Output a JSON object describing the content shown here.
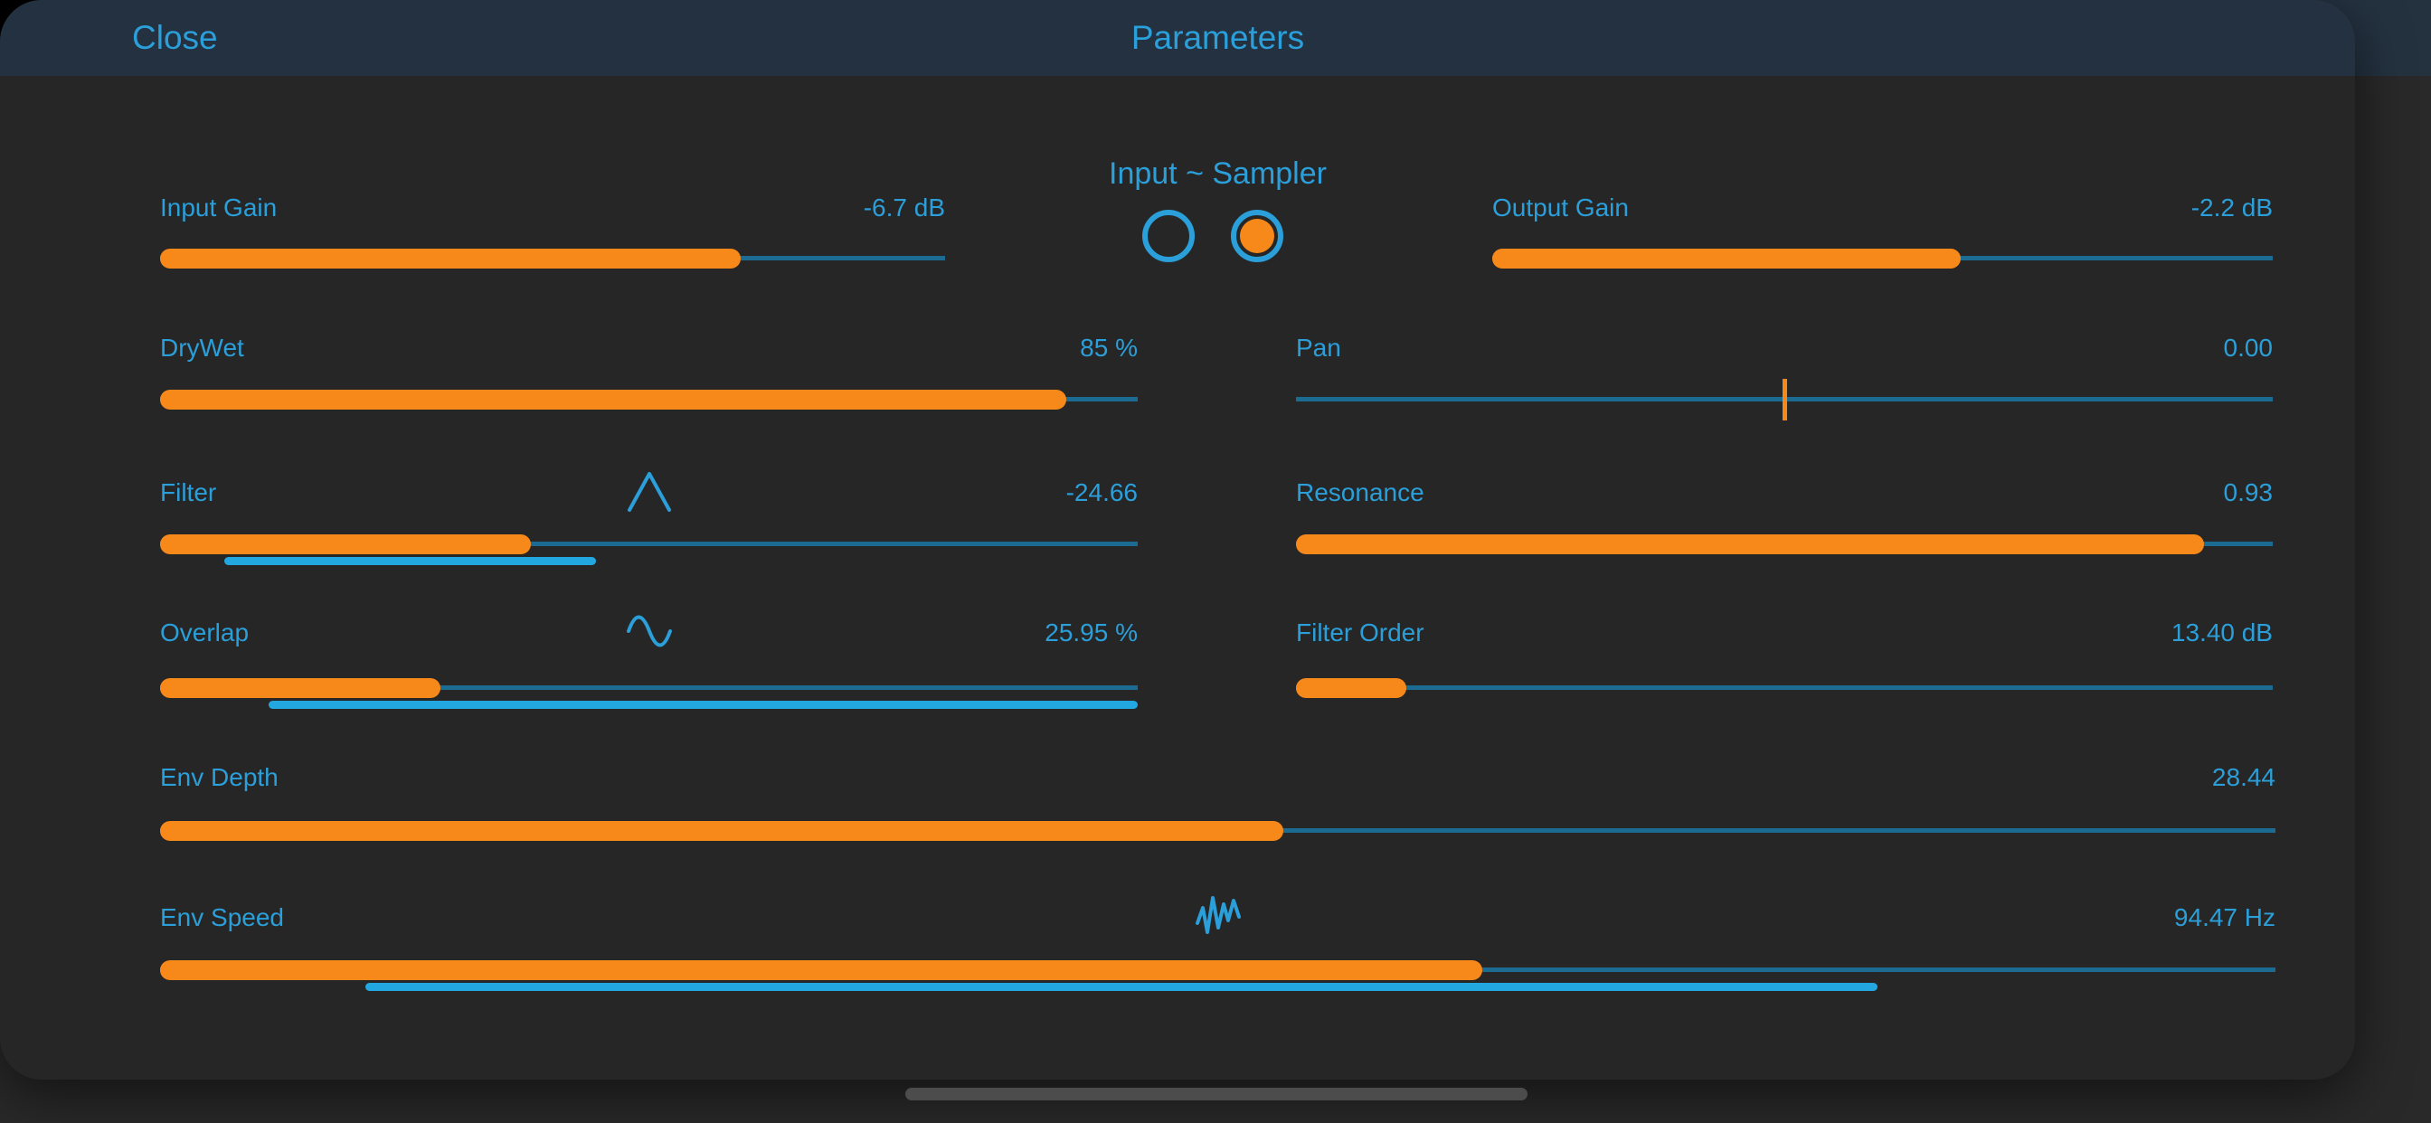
{
  "window": {
    "close_label": "Close",
    "title": "Parameters"
  },
  "header": {
    "label": "Input ~ Sampler",
    "dots": [
      {
        "name": "page-1",
        "selected": false
      },
      {
        "name": "page-2",
        "selected": true
      }
    ]
  },
  "colors": {
    "accent_blue": "#2b9fd9",
    "track_blue": "#1b6b93",
    "modulation_blue": "#22a7e1",
    "orange": "#f7891b",
    "topbar": "#233140",
    "panel_bg": "#262626",
    "backdrop_bg": "#292929",
    "home_indicator": "#4c4c4c"
  },
  "params": [
    {
      "id": "input-gain",
      "label": "Input Gain",
      "value": "-6.7 dB",
      "type": "bar",
      "fill_pct": 74,
      "col": "r0left",
      "row": 0
    },
    {
      "id": "output-gain",
      "label": "Output Gain",
      "value": "-2.2 dB",
      "type": "bar",
      "fill_pct": 60,
      "col": "r0right",
      "row": 0
    },
    {
      "id": "drywet",
      "label": "DryWet",
      "value": "85 %",
      "type": "bar",
      "fill_pct": 92.7,
      "col": "left",
      "row": 1
    },
    {
      "id": "pan",
      "label": "Pan",
      "value": "0.00",
      "type": "tick",
      "tick_pct": 50,
      "col": "right",
      "row": 1
    },
    {
      "id": "filter",
      "label": "Filter",
      "value": "-24.66",
      "type": "bar",
      "fill_pct": 37.9,
      "col": "left",
      "row": 2,
      "icon": "triangle-wave",
      "mod": {
        "start_pct": 6.6,
        "end_pct": 44.6
      }
    },
    {
      "id": "resonance",
      "label": "Resonance",
      "value": "0.93",
      "type": "bar",
      "fill_pct": 93,
      "col": "right",
      "row": 2
    },
    {
      "id": "overlap",
      "label": "Overlap",
      "value": "25.95 %",
      "type": "bar",
      "fill_pct": 28.7,
      "col": "left",
      "row": 3,
      "icon": "sine-wave",
      "mod": {
        "start_pct": 11.1,
        "end_pct": 100
      }
    },
    {
      "id": "filter-order",
      "label": "Filter Order",
      "value": "13.40 dB",
      "type": "bar",
      "fill_pct": 11.3,
      "col": "right",
      "row": 3
    },
    {
      "id": "env-depth",
      "label": "Env Depth",
      "value": "28.44",
      "type": "bar",
      "fill_pct": 53.1,
      "col": "full",
      "row": 4
    },
    {
      "id": "env-speed",
      "label": "Env Speed",
      "value": "94.47 Hz",
      "type": "bar",
      "fill_pct": 62.5,
      "col": "full",
      "row": 5,
      "icon": "random-wave",
      "mod": {
        "start_pct": 9.7,
        "end_pct": 81.2
      }
    }
  ]
}
